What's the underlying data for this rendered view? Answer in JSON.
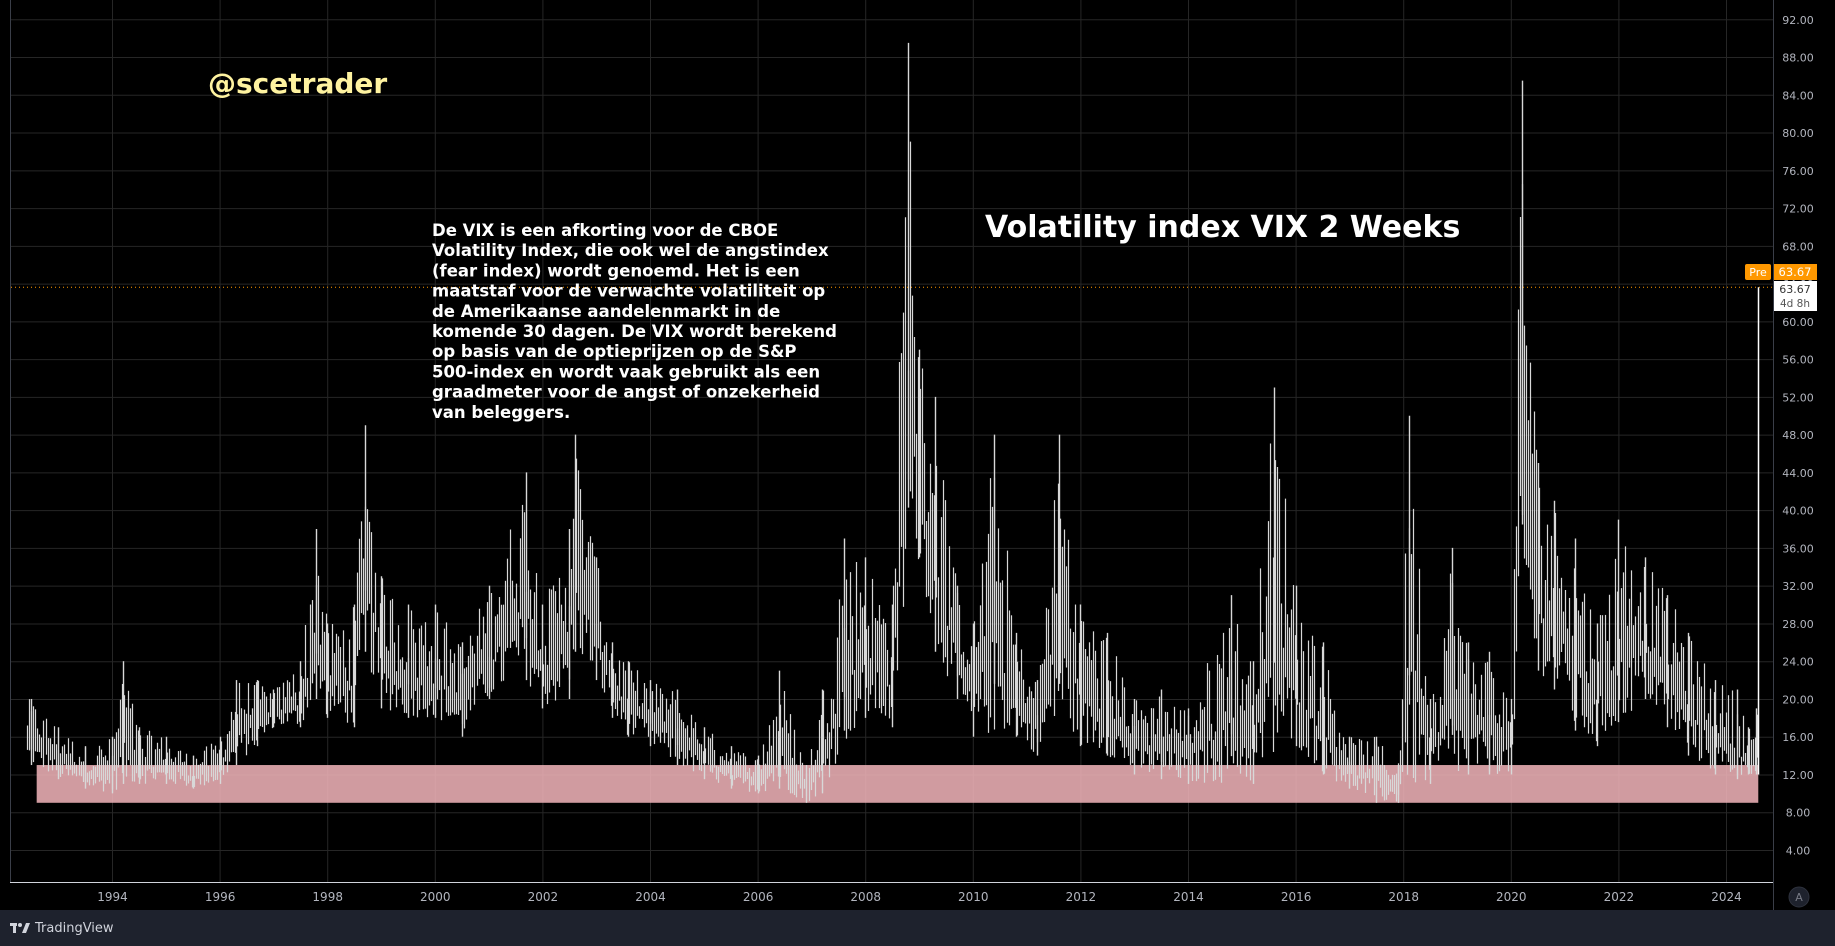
{
  "watermark": "@scetrader",
  "description": "De VIX is een afkorting voor de CBOE Volatility Index, die ook wel de angstindex (fear index) wordt genoemd. Het is een maatstaf voor de verwachte volatiliteit op de Amerikaanse aandelenmarkt in de komende 30 dagen. De VIX wordt berekend op basis van de optieprijzen op de S&P 500-index en wordt vaak gebruikt als een graadmeter voor de angst of onzekerheid van beleggers.",
  "description_lines": [
    "De VIX is een afkorting voor de CBOE",
    "Volatility Index, die ook wel de angstindex",
    "(fear index) wordt genoemd. Het is een",
    "maatstaf voor de verwachte volatiliteit op",
    "de Amerikaanse aandelenmarkt in de",
    "komende 30 dagen. De VIX wordt berekend",
    "op basis van de optieprijzen op de S&P",
    "500-index en wordt vaak gebruikt als een",
    "graadmeter voor de angst of onzekerheid",
    "van beleggers."
  ],
  "price_labels": {
    "pre_tag": "Pre",
    "pre_value": "63.67",
    "last_value": "63.67",
    "countdown": "4d 8h"
  },
  "brand": "TradingView",
  "colors": {
    "background": "#000000",
    "grid": "#2a2a2a",
    "bars": "#d8d8d8",
    "zone": "#f4b6bc",
    "title": "#ffffff",
    "watermark": "#fff3a0",
    "pre_tag": "#ff9800",
    "price_line": "#ff9800"
  },
  "chart_data": {
    "type": "bar",
    "subtype": "ohlc-range",
    "title": "Volatility index VIX 2 Weeks",
    "xlabel": "",
    "ylabel": "",
    "ylim": [
      2,
      94
    ],
    "xlim": [
      1992.4,
      2025.0
    ],
    "x_ticks": [
      "1994",
      "1996",
      "1998",
      "2000",
      "2002",
      "2004",
      "2006",
      "2008",
      "2010",
      "2012",
      "2014",
      "2016",
      "2018",
      "2020",
      "2022",
      "2024"
    ],
    "y_ticks": [
      "92.00",
      "88.00",
      "84.00",
      "80.00",
      "76.00",
      "72.00",
      "68.00",
      "64.00",
      "60.00",
      "56.00",
      "52.00",
      "48.00",
      "44.00",
      "40.00",
      "36.00",
      "32.00",
      "28.00",
      "24.00",
      "20.00",
      "16.00",
      "12.00",
      "8.00",
      "4.00"
    ],
    "grid": true,
    "current_price": 63.67,
    "support_zone": {
      "x_start": 1992.6,
      "x_end": 2024.6,
      "y_low": 9,
      "y_high": 13
    },
    "envelope": [
      {
        "x": 1992.5,
        "low": 13,
        "high": 20
      },
      {
        "x": 1993.0,
        "low": 11.5,
        "high": 17
      },
      {
        "x": 1993.5,
        "low": 10.5,
        "high": 15
      },
      {
        "x": 1994.0,
        "low": 10,
        "high": 16
      },
      {
        "x": 1994.2,
        "low": 11,
        "high": 24
      },
      {
        "x": 1994.5,
        "low": 11,
        "high": 17
      },
      {
        "x": 1995.0,
        "low": 11,
        "high": 16
      },
      {
        "x": 1995.5,
        "low": 10.5,
        "high": 14
      },
      {
        "x": 1996.0,
        "low": 11,
        "high": 16
      },
      {
        "x": 1996.3,
        "low": 13,
        "high": 22
      },
      {
        "x": 1996.7,
        "low": 15,
        "high": 22
      },
      {
        "x": 1997.0,
        "low": 17,
        "high": 21
      },
      {
        "x": 1997.5,
        "low": 17,
        "high": 24
      },
      {
        "x": 1997.8,
        "low": 20,
        "high": 38
      },
      {
        "x": 1998.0,
        "low": 18,
        "high": 28
      },
      {
        "x": 1998.5,
        "low": 17,
        "high": 30
      },
      {
        "x": 1998.7,
        "low": 25,
        "high": 49
      },
      {
        "x": 1999.0,
        "low": 19,
        "high": 33
      },
      {
        "x": 1999.5,
        "low": 18,
        "high": 30
      },
      {
        "x": 2000.0,
        "low": 18,
        "high": 30
      },
      {
        "x": 2000.5,
        "low": 16,
        "high": 26
      },
      {
        "x": 2001.0,
        "low": 20,
        "high": 32
      },
      {
        "x": 2001.7,
        "low": 22,
        "high": 44
      },
      {
        "x": 2002.0,
        "low": 19,
        "high": 30
      },
      {
        "x": 2002.5,
        "low": 20,
        "high": 38
      },
      {
        "x": 2002.6,
        "low": 25,
        "high": 48
      },
      {
        "x": 2003.0,
        "low": 22,
        "high": 35
      },
      {
        "x": 2003.3,
        "low": 18,
        "high": 26
      },
      {
        "x": 2003.6,
        "low": 16,
        "high": 24
      },
      {
        "x": 2004.0,
        "low": 15,
        "high": 22
      },
      {
        "x": 2004.5,
        "low": 13,
        "high": 21
      },
      {
        "x": 2005.0,
        "low": 11.5,
        "high": 17
      },
      {
        "x": 2005.5,
        "low": 10.5,
        "high": 15
      },
      {
        "x": 2006.0,
        "low": 10,
        "high": 14
      },
      {
        "x": 2006.4,
        "low": 10.5,
        "high": 23
      },
      {
        "x": 2006.9,
        "low": 9,
        "high": 13
      },
      {
        "x": 2007.2,
        "low": 10,
        "high": 21
      },
      {
        "x": 2007.6,
        "low": 15,
        "high": 37
      },
      {
        "x": 2008.0,
        "low": 18,
        "high": 35
      },
      {
        "x": 2008.5,
        "low": 17,
        "high": 30
      },
      {
        "x": 2008.8,
        "low": 30,
        "high": 89.5
      },
      {
        "x": 2009.0,
        "low": 35,
        "high": 57
      },
      {
        "x": 2009.3,
        "low": 25,
        "high": 52
      },
      {
        "x": 2009.7,
        "low": 20,
        "high": 32
      },
      {
        "x": 2010.0,
        "low": 16,
        "high": 28
      },
      {
        "x": 2010.4,
        "low": 16,
        "high": 48
      },
      {
        "x": 2010.8,
        "low": 16,
        "high": 27
      },
      {
        "x": 2011.2,
        "low": 14,
        "high": 22
      },
      {
        "x": 2011.6,
        "low": 17,
        "high": 48
      },
      {
        "x": 2012.0,
        "low": 15,
        "high": 30
      },
      {
        "x": 2012.5,
        "low": 14,
        "high": 27
      },
      {
        "x": 2013.0,
        "low": 12,
        "high": 20
      },
      {
        "x": 2013.5,
        "low": 11.5,
        "high": 21
      },
      {
        "x": 2014.0,
        "low": 11,
        "high": 19
      },
      {
        "x": 2014.8,
        "low": 11,
        "high": 31
      },
      {
        "x": 2015.2,
        "low": 11,
        "high": 24
      },
      {
        "x": 2015.6,
        "low": 12,
        "high": 53
      },
      {
        "x": 2016.0,
        "low": 15,
        "high": 32
      },
      {
        "x": 2016.5,
        "low": 12,
        "high": 26
      },
      {
        "x": 2017.0,
        "low": 10.5,
        "high": 16
      },
      {
        "x": 2017.5,
        "low": 9,
        "high": 16
      },
      {
        "x": 2017.9,
        "low": 9,
        "high": 13
      },
      {
        "x": 2018.1,
        "low": 10,
        "high": 50
      },
      {
        "x": 2018.5,
        "low": 11,
        "high": 20
      },
      {
        "x": 2018.9,
        "low": 11,
        "high": 36
      },
      {
        "x": 2019.2,
        "low": 12,
        "high": 26
      },
      {
        "x": 2019.6,
        "low": 12,
        "high": 25
      },
      {
        "x": 2020.0,
        "low": 12,
        "high": 20
      },
      {
        "x": 2020.2,
        "low": 25,
        "high": 85.5
      },
      {
        "x": 2020.5,
        "low": 23,
        "high": 45
      },
      {
        "x": 2020.8,
        "low": 21,
        "high": 41
      },
      {
        "x": 2021.2,
        "low": 16,
        "high": 37
      },
      {
        "x": 2021.6,
        "low": 15,
        "high": 28
      },
      {
        "x": 2022.0,
        "low": 17,
        "high": 39
      },
      {
        "x": 2022.5,
        "low": 20,
        "high": 35
      },
      {
        "x": 2022.9,
        "low": 17,
        "high": 31
      },
      {
        "x": 2023.3,
        "low": 14,
        "high": 27
      },
      {
        "x": 2023.8,
        "low": 12,
        "high": 22
      },
      {
        "x": 2024.2,
        "low": 11.5,
        "high": 21
      },
      {
        "x": 2024.4,
        "low": 12,
        "high": 17
      },
      {
        "x": 2024.55,
        "low": 12,
        "high": 19
      }
    ]
  }
}
